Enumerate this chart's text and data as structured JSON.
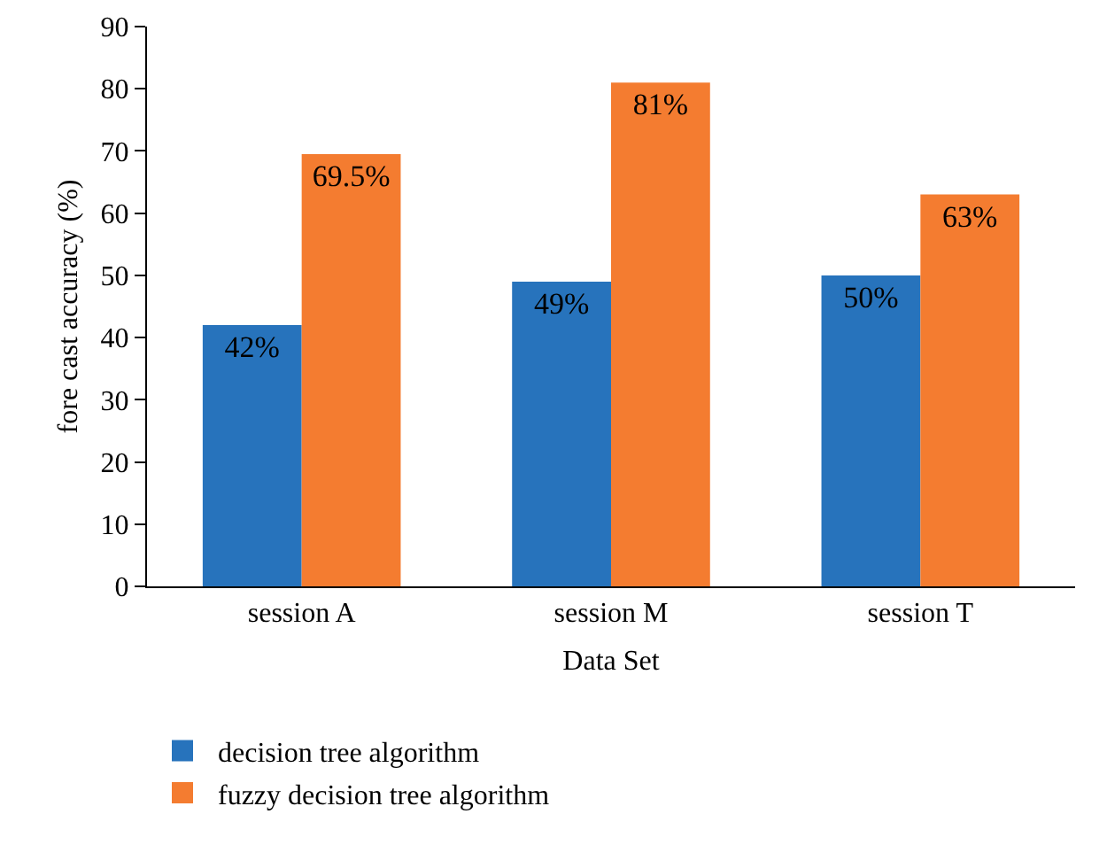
{
  "chart_data": {
    "type": "bar",
    "xlabel": "Data Set",
    "ylabel": "fore cast accuracy (%)",
    "categories": [
      "session A",
      "session M",
      "session T"
    ],
    "series": [
      {
        "name": "decision tree algorithm",
        "color": "#2773bc",
        "values": [
          42,
          49,
          50
        ],
        "value_labels": [
          "42%",
          "49%",
          "50%"
        ]
      },
      {
        "name": "fuzzy decision tree algorithm",
        "color": "#f47c30",
        "values": [
          69.5,
          81,
          63
        ],
        "value_labels": [
          "69.5%",
          "81%",
          "63%"
        ]
      }
    ],
    "ylim": [
      0,
      90
    ],
    "yticks": [
      0,
      10,
      20,
      30,
      40,
      50,
      60,
      70,
      80,
      90
    ],
    "grid": false,
    "legend": "bottom left"
  }
}
